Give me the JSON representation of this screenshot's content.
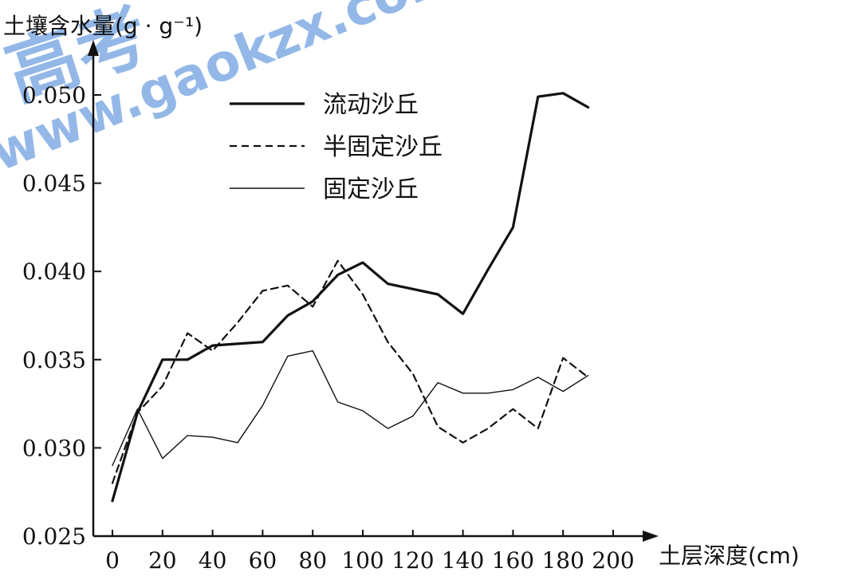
{
  "watermark": {
    "text_cn": "高考",
    "text_url": "www.gaokzx.com",
    "color": "#3b7fd6"
  },
  "chart_data": {
    "type": "line",
    "ylabel": "土壤含水量(g · g⁻¹)",
    "xlabel": "土层深度(cm)",
    "xlim": [
      0,
      200
    ],
    "ylim": [
      0.025,
      0.052
    ],
    "xticks": [
      "0",
      "20",
      "40",
      "60",
      "80",
      "100",
      "120",
      "140",
      "160",
      "180",
      "200"
    ],
    "yticks": [
      "0.025",
      "0.030",
      "0.035",
      "0.040",
      "0.045",
      "0.050"
    ],
    "grid": false,
    "legend_position": "top-center",
    "series": [
      {
        "name": "流动沙丘",
        "style": "solid-thick",
        "color": "#111111",
        "x": [
          0,
          10,
          20,
          30,
          40,
          50,
          60,
          70,
          80,
          90,
          100,
          110,
          120,
          130,
          140,
          150,
          160,
          170,
          180,
          190
        ],
        "y": [
          0.027,
          0.032,
          0.035,
          0.035,
          0.0358,
          0.0359,
          0.036,
          0.0375,
          0.0383,
          0.0398,
          0.0405,
          0.0393,
          0.039,
          0.0387,
          0.0376,
          0.0401,
          0.0425,
          0.0499,
          0.0501,
          0.0493
        ]
      },
      {
        "name": "半固定沙丘",
        "style": "dashed",
        "color": "#111111",
        "x": [
          0,
          10,
          20,
          30,
          40,
          50,
          60,
          70,
          80,
          90,
          100,
          110,
          120,
          130,
          140,
          150,
          160,
          170,
          180,
          190
        ],
        "y": [
          0.028,
          0.032,
          0.0335,
          0.0365,
          0.0355,
          0.0371,
          0.0389,
          0.0392,
          0.038,
          0.0406,
          0.0387,
          0.036,
          0.0342,
          0.0312,
          0.0303,
          0.0311,
          0.0322,
          0.0311,
          0.0351,
          0.034
        ]
      },
      {
        "name": "固定沙丘",
        "style": "solid-thin",
        "color": "#111111",
        "x": [
          0,
          10,
          20,
          30,
          40,
          50,
          60,
          70,
          80,
          90,
          100,
          110,
          120,
          130,
          140,
          150,
          160,
          170,
          180,
          190
        ],
        "y": [
          0.029,
          0.0322,
          0.0294,
          0.0307,
          0.0306,
          0.0303,
          0.0324,
          0.0352,
          0.0355,
          0.0326,
          0.0321,
          0.0311,
          0.0318,
          0.0337,
          0.0331,
          0.0331,
          0.0333,
          0.034,
          0.0332,
          0.0341
        ]
      }
    ]
  }
}
